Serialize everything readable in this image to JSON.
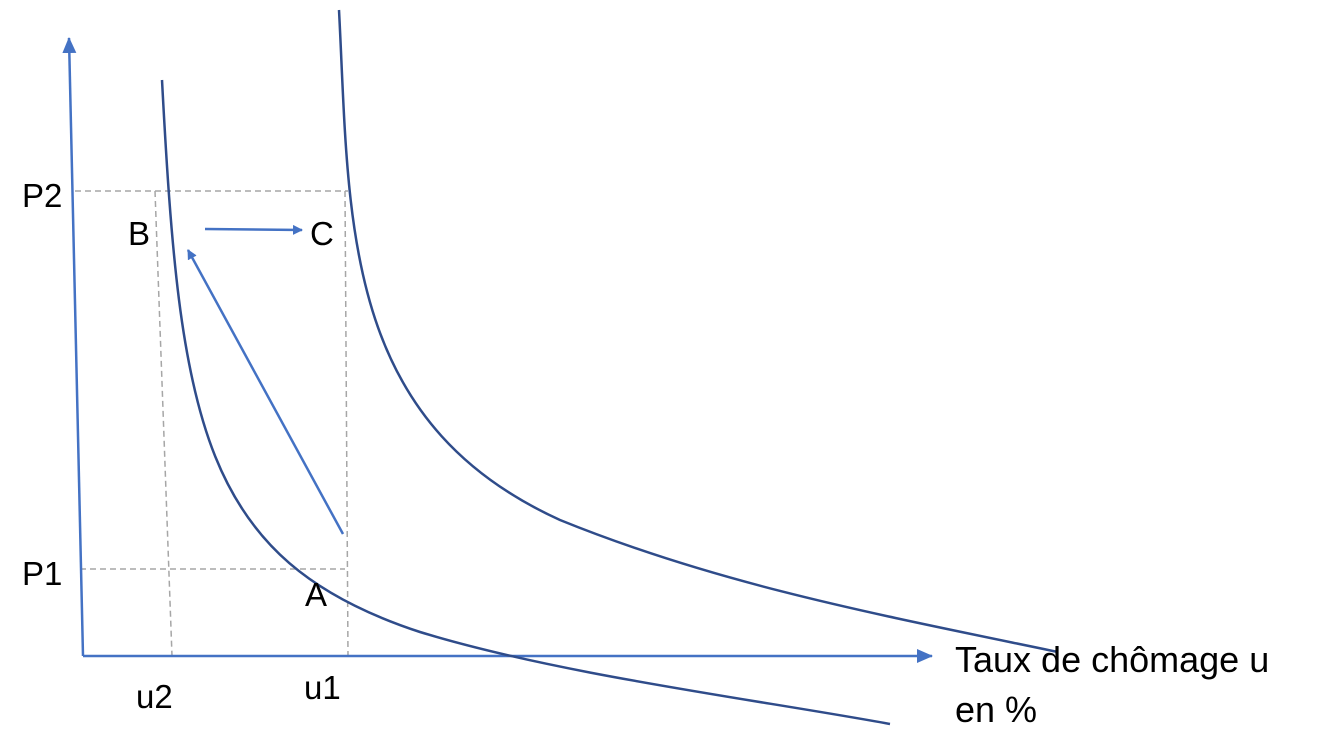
{
  "labels": {
    "p2": "P2",
    "p1": "P1",
    "point_b": "B",
    "point_c": "C",
    "point_a": "A",
    "u2": "u2",
    "u1": "u1",
    "x_axis_line1": "Taux de chômage u",
    "x_axis_line2": "en %"
  },
  "colors": {
    "axis": "#4472C4",
    "curve": "#2F4C8A",
    "arrow": "#4472C4",
    "guide": "#A6A6A6",
    "text": "#000000"
  }
}
